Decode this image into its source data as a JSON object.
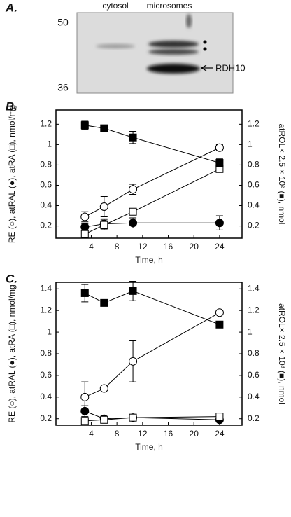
{
  "blot": {
    "panel": "A.",
    "lanes": [
      "cytosol",
      "microsomes"
    ],
    "markers": [
      "50",
      "36"
    ],
    "band_label": "RDH10"
  },
  "chart_data": [
    {
      "type": "line",
      "panel": "B.",
      "xlabel": "Time, h",
      "ylabel": "RE (○), atRAL (●), atRA (□), nmol/mg",
      "y2label": "atROL× 2.5 × 10³ (■), nmol",
      "x": [
        3,
        6,
        10.5,
        24
      ],
      "xlim": [
        -1.5,
        27.5
      ],
      "xticks": [
        4,
        8,
        12,
        16,
        20,
        24
      ],
      "ylim": [
        0.08,
        1.34
      ],
      "yticks": [
        0.2,
        0.4,
        0.6,
        0.8,
        1.0,
        1.2
      ],
      "y2lim": [
        0.08,
        1.34
      ],
      "y2ticks": [
        0.2,
        0.4,
        0.6,
        0.8,
        1.0,
        1.2
      ],
      "series": [
        {
          "marker": "open-circle",
          "color": "#000",
          "values": [
            0.29,
            0.39,
            0.56,
            0.97
          ],
          "errors": [
            0.05,
            0.1,
            0.05,
            0.03
          ]
        },
        {
          "marker": "filled-circle",
          "color": "#000",
          "values": [
            0.19,
            0.22,
            0.23,
            0.23
          ],
          "errors": [
            0.03,
            0.05,
            0.05,
            0.07
          ]
        },
        {
          "marker": "open-square",
          "color": "#000",
          "values": [
            0.12,
            0.21,
            0.34,
            0.76
          ],
          "errors": [
            0.02,
            0.05,
            0.02,
            0.02
          ]
        },
        {
          "marker": "filled-square",
          "color": "#000",
          "axis": "y2",
          "values": [
            1.19,
            1.16,
            1.07,
            0.82
          ],
          "errors": [
            0.04,
            0.03,
            0.06,
            0.04
          ]
        }
      ]
    },
    {
      "type": "line",
      "panel": "C.",
      "xlabel": "Time, h",
      "ylabel": "RE (○), atRAL (●),  atRA (□), nmol/mg",
      "y2label": "atROL× 2.5 × 10³ (■), nmol",
      "x": [
        3,
        6,
        10.5,
        24
      ],
      "xlim": [
        -1.5,
        27.5
      ],
      "xticks": [
        4,
        8,
        12,
        16,
        20,
        24
      ],
      "ylim": [
        0.14,
        1.46
      ],
      "yticks": [
        0.2,
        0.4,
        0.6,
        0.8,
        1.0,
        1.2,
        1.4
      ],
      "y2lim": [
        0.14,
        1.46
      ],
      "y2ticks": [
        0.2,
        0.4,
        0.6,
        0.8,
        1.0,
        1.2,
        1.4
      ],
      "series": [
        {
          "marker": "open-circle",
          "color": "#000",
          "values": [
            0.4,
            0.48,
            0.73,
            1.18
          ],
          "errors": [
            0.14,
            0.01,
            0.19,
            0.02
          ]
        },
        {
          "marker": "filled-circle",
          "color": "#000",
          "values": [
            0.27,
            0.2,
            0.21,
            0.19
          ],
          "errors": [
            0.05,
            0.01,
            0.01,
            0.01
          ]
        },
        {
          "marker": "open-square",
          "color": "#000",
          "values": [
            0.18,
            0.19,
            0.21,
            0.22
          ],
          "errors": [
            0.01,
            0.01,
            0.01,
            0.01
          ]
        },
        {
          "marker": "filled-square",
          "color": "#000",
          "axis": "y2",
          "values": [
            1.36,
            1.27,
            1.38,
            1.07
          ],
          "errors": [
            0.08,
            0.02,
            0.09,
            0.03
          ]
        }
      ]
    }
  ]
}
